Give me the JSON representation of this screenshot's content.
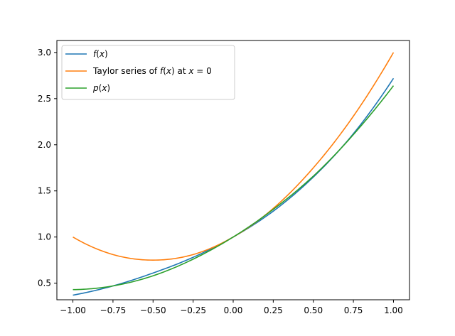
{
  "chart_data": {
    "type": "line",
    "title": "",
    "xlabel": "",
    "ylabel": "",
    "xlim": [
      -1.1,
      1.1
    ],
    "ylim": [
      0.32,
      3.13
    ],
    "grid": false,
    "legend_position": "top-left",
    "x_ticks": [
      "−1.00",
      "−0.75",
      "−0.50",
      "−0.25",
      "0.00",
      "0.25",
      "0.50",
      "0.75",
      "1.00"
    ],
    "y_ticks": [
      "0.5",
      "1.0",
      "1.5",
      "2.0",
      "2.5",
      "3.0"
    ],
    "x": [
      -1.0,
      -0.75,
      -0.5,
      -0.25,
      0.0,
      0.25,
      0.5,
      0.75,
      1.0
    ],
    "series": [
      {
        "name": "f(x)",
        "color": "#1f77b4",
        "values": [
          0.37,
          0.47,
          0.61,
          0.78,
          1.0,
          1.28,
          1.65,
          2.12,
          2.72
        ]
      },
      {
        "name": "Taylor series of f(x) at x = 0",
        "color": "#ff7f0e",
        "values": [
          1.0,
          0.81,
          0.75,
          0.81,
          1.0,
          1.31,
          1.75,
          2.31,
          3.0
        ]
      },
      {
        "name": "p(x)",
        "color": "#2ca02c",
        "values": [
          0.43,
          0.47,
          0.58,
          0.76,
          1.0,
          1.3,
          1.66,
          2.11,
          2.64
        ]
      }
    ]
  }
}
